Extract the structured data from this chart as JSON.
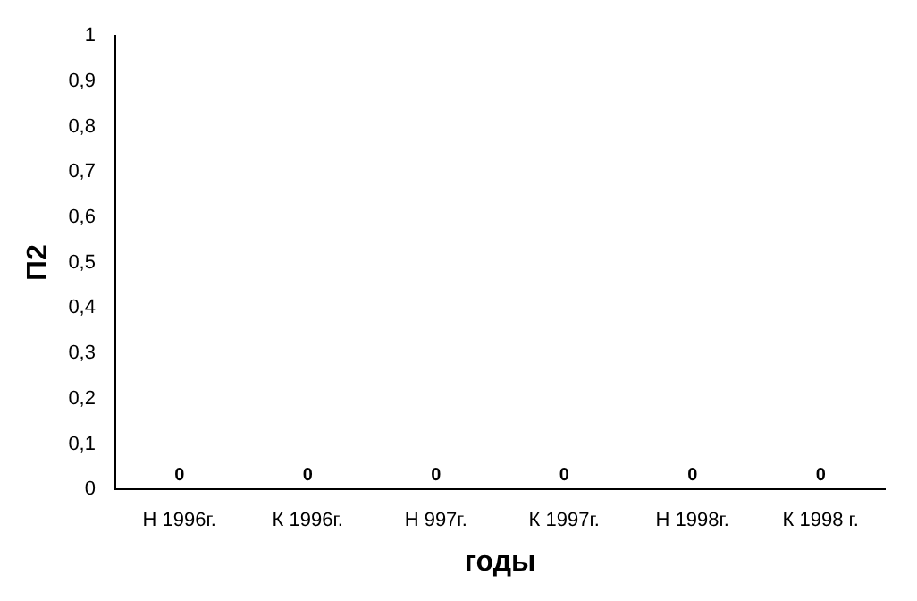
{
  "chart_data": {
    "type": "bar",
    "xlabel": "годы",
    "ylabel": "П2",
    "categories": [
      "Н 1996г.",
      "К 1996г.",
      "Н 997г.",
      "К 1997г.",
      "Н 1998г.",
      "К 1998 г."
    ],
    "values": [
      0,
      0,
      0,
      0,
      0,
      0
    ],
    "ylim": [
      0,
      1
    ],
    "yticks": [
      0,
      {
        "value": 0.1,
        "label": "0,1"
      },
      {
        "value": 0.2,
        "label": "0,2"
      },
      {
        "value": 0.3,
        "label": "0,3"
      },
      {
        "value": 0.4,
        "label": "0,4"
      },
      {
        "value": 0.5,
        "label": "0,5"
      },
      {
        "value": 0.6,
        "label": "0,6"
      },
      {
        "value": 0.7,
        "label": "0,7"
      },
      {
        "value": 0.8,
        "label": "0,8"
      },
      {
        "value": 0.9,
        "label": "0,9"
      },
      1
    ],
    "data_labels": true,
    "grid": false,
    "legend": false
  }
}
